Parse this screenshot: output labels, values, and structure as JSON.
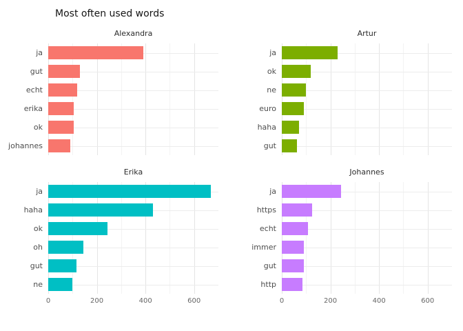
{
  "title": "Most often used words",
  "chart_data": {
    "type": "bar",
    "orientation": "horizontal",
    "title": "Most often used words",
    "xlabel": "",
    "ylabel": "",
    "xlim": [
      0,
      700
    ],
    "x_ticks": [
      0,
      200,
      400,
      600
    ],
    "x_minor_ticks": [
      100,
      300,
      500
    ],
    "grid": true,
    "legend": "none",
    "facets": [
      {
        "name": "Alexandra",
        "color": "#F8766D",
        "categories": [
          "ja",
          "gut",
          "echt",
          "erika",
          "ok",
          "johannes"
        ],
        "values": [
          390,
          130,
          120,
          105,
          105,
          90
        ]
      },
      {
        "name": "Artur",
        "color": "#7CAE00",
        "categories": [
          "ja",
          "ok",
          "ne",
          "euro",
          "haha",
          "gut"
        ],
        "values": [
          230,
          120,
          100,
          90,
          72,
          63
        ]
      },
      {
        "name": "Erika",
        "color": "#00BFC4",
        "categories": [
          "ja",
          "haha",
          "ok",
          "oh",
          "gut",
          "ne"
        ],
        "values": [
          670,
          430,
          245,
          145,
          115,
          100
        ]
      },
      {
        "name": "Johannes",
        "color": "#C77CFF",
        "categories": [
          "ja",
          "https",
          "echt",
          "immer",
          "gut",
          "http"
        ],
        "values": [
          243,
          126,
          108,
          92,
          92,
          85
        ]
      }
    ]
  }
}
